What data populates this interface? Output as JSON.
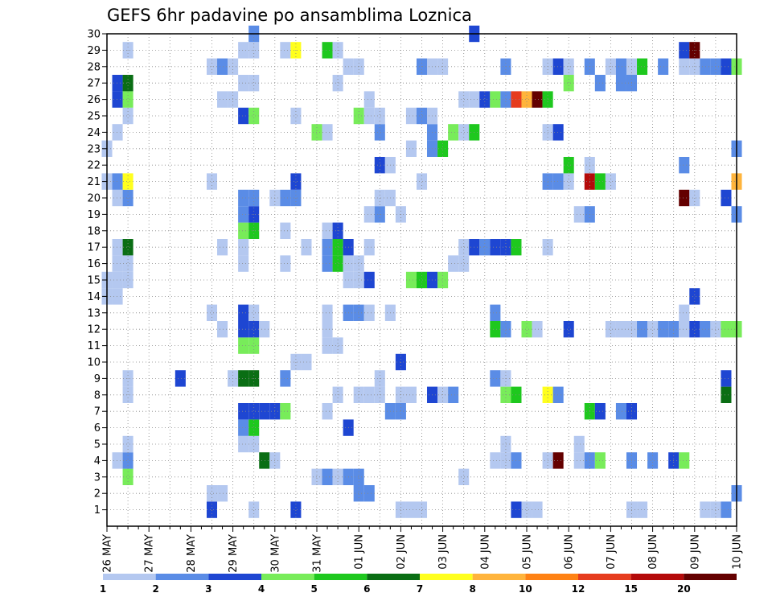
{
  "chart_data": {
    "type": "heatmap",
    "title": "GEFS 6hr padavine po ansamblima Loznica",
    "y_categories": [
      "1",
      "2",
      "3",
      "4",
      "5",
      "6",
      "7",
      "8",
      "9",
      "10",
      "11",
      "12",
      "13",
      "14",
      "15",
      "16",
      "17",
      "18",
      "19",
      "20",
      "21",
      "22",
      "23",
      "24",
      "25",
      "26",
      "27",
      "28",
      "29",
      "30"
    ],
    "x_tick_labels": [
      "26 MAY",
      "27 MAY",
      "28 MAY",
      "29 MAY",
      "30 MAY",
      "31 MAY",
      "01 JUN",
      "02 JUN",
      "03 JUN",
      "04 JUN",
      "05 JUN",
      "06 JUN",
      "07 JUN",
      "08 JUN",
      "09 JUN",
      "10 JUN"
    ],
    "x_step_hours": 6,
    "n_time_steps": 61,
    "colorbar": {
      "tick_labels": [
        "1",
        "2",
        "3",
        "4",
        "5",
        "6",
        "7",
        "8",
        "10",
        "12",
        "15",
        "20"
      ],
      "colors": [
        "#b4c8f0",
        "#5a8ce6",
        "#1e46d2",
        "#78ec5a",
        "#1ec81e",
        "#0a6e14",
        "#ffff1e",
        "#ffb43c",
        "#ff8214",
        "#e63c1e",
        "#b40a0a",
        "#640000"
      ]
    },
    "grid": true,
    "cells": [
      [
        1,
        10,
        3
      ],
      [
        1,
        14,
        1
      ],
      [
        1,
        18,
        3
      ],
      [
        1,
        28,
        1
      ],
      [
        1,
        29,
        1
      ],
      [
        1,
        30,
        1
      ],
      [
        1,
        39,
        3
      ],
      [
        1,
        40,
        1
      ],
      [
        1,
        41,
        1
      ],
      [
        1,
        50,
        1
      ],
      [
        1,
        51,
        1
      ],
      [
        1,
        57,
        1
      ],
      [
        1,
        58,
        1
      ],
      [
        1,
        59,
        2
      ],
      [
        2,
        10,
        1
      ],
      [
        2,
        11,
        1
      ],
      [
        2,
        24,
        2
      ],
      [
        2,
        25,
        2
      ],
      [
        2,
        60,
        2
      ],
      [
        3,
        2,
        4
      ],
      [
        3,
        20,
        1
      ],
      [
        3,
        21,
        2
      ],
      [
        3,
        22,
        1
      ],
      [
        3,
        23,
        2
      ],
      [
        3,
        24,
        2
      ],
      [
        3,
        34,
        1
      ],
      [
        4,
        1,
        1
      ],
      [
        4,
        2,
        2
      ],
      [
        4,
        15,
        6
      ],
      [
        4,
        16,
        1
      ],
      [
        4,
        37,
        1
      ],
      [
        4,
        38,
        1
      ],
      [
        4,
        39,
        2
      ],
      [
        4,
        42,
        1
      ],
      [
        4,
        43,
        12
      ],
      [
        4,
        45,
        1
      ],
      [
        4,
        46,
        2
      ],
      [
        4,
        47,
        4
      ],
      [
        4,
        50,
        2
      ],
      [
        4,
        52,
        2
      ],
      [
        4,
        54,
        3
      ],
      [
        4,
        55,
        4
      ],
      [
        5,
        2,
        1
      ],
      [
        5,
        13,
        1
      ],
      [
        5,
        14,
        1
      ],
      [
        5,
        38,
        1
      ],
      [
        5,
        45,
        1
      ],
      [
        6,
        13,
        2
      ],
      [
        6,
        14,
        5
      ],
      [
        6,
        23,
        3
      ],
      [
        7,
        13,
        3
      ],
      [
        7,
        14,
        3
      ],
      [
        7,
        15,
        3
      ],
      [
        7,
        16,
        3
      ],
      [
        7,
        17,
        4
      ],
      [
        7,
        21,
        1
      ],
      [
        7,
        27,
        2
      ],
      [
        7,
        28,
        2
      ],
      [
        7,
        46,
        5
      ],
      [
        7,
        47,
        3
      ],
      [
        7,
        49,
        2
      ],
      [
        7,
        50,
        3
      ],
      [
        8,
        2,
        1
      ],
      [
        8,
        22,
        1
      ],
      [
        8,
        24,
        1
      ],
      [
        8,
        25,
        1
      ],
      [
        8,
        26,
        1
      ],
      [
        8,
        28,
        1
      ],
      [
        8,
        29,
        1
      ],
      [
        8,
        31,
        3
      ],
      [
        8,
        32,
        1
      ],
      [
        8,
        33,
        2
      ],
      [
        8,
        38,
        4
      ],
      [
        8,
        39,
        5
      ],
      [
        8,
        42,
        7
      ],
      [
        8,
        43,
        2
      ],
      [
        8,
        59,
        6
      ],
      [
        9,
        2,
        1
      ],
      [
        9,
        7,
        3
      ],
      [
        9,
        12,
        1
      ],
      [
        9,
        13,
        6
      ],
      [
        9,
        14,
        6
      ],
      [
        9,
        17,
        2
      ],
      [
        9,
        26,
        1
      ],
      [
        9,
        37,
        2
      ],
      [
        9,
        38,
        1
      ],
      [
        9,
        59,
        3
      ],
      [
        10,
        18,
        1
      ],
      [
        10,
        19,
        1
      ],
      [
        10,
        28,
        3
      ],
      [
        11,
        13,
        4
      ],
      [
        11,
        14,
        4
      ],
      [
        11,
        21,
        1
      ],
      [
        11,
        22,
        1
      ],
      [
        12,
        11,
        1
      ],
      [
        12,
        13,
        3
      ],
      [
        12,
        14,
        3
      ],
      [
        12,
        15,
        1
      ],
      [
        12,
        21,
        1
      ],
      [
        12,
        37,
        5
      ],
      [
        12,
        38,
        2
      ],
      [
        12,
        40,
        4
      ],
      [
        12,
        41,
        1
      ],
      [
        12,
        44,
        3
      ],
      [
        12,
        48,
        1
      ],
      [
        12,
        49,
        1
      ],
      [
        12,
        50,
        1
      ],
      [
        12,
        51,
        2
      ],
      [
        12,
        52,
        1
      ],
      [
        12,
        53,
        2
      ],
      [
        12,
        54,
        2
      ],
      [
        12,
        55,
        1
      ],
      [
        12,
        56,
        3
      ],
      [
        12,
        57,
        2
      ],
      [
        12,
        58,
        1
      ],
      [
        12,
        59,
        4
      ],
      [
        12,
        60,
        4
      ],
      [
        13,
        10,
        1
      ],
      [
        13,
        13,
        3
      ],
      [
        13,
        14,
        1
      ],
      [
        13,
        21,
        1
      ],
      [
        13,
        23,
        2
      ],
      [
        13,
        24,
        2
      ],
      [
        13,
        25,
        1
      ],
      [
        13,
        27,
        1
      ],
      [
        13,
        37,
        2
      ],
      [
        13,
        55,
        1
      ],
      [
        14,
        0,
        1
      ],
      [
        14,
        1,
        1
      ],
      [
        14,
        56,
        3
      ],
      [
        15,
        0,
        1
      ],
      [
        15,
        1,
        1
      ],
      [
        15,
        2,
        1
      ],
      [
        15,
        23,
        1
      ],
      [
        15,
        24,
        1
      ],
      [
        15,
        25,
        3
      ],
      [
        15,
        29,
        4
      ],
      [
        15,
        30,
        5
      ],
      [
        15,
        31,
        3
      ],
      [
        15,
        32,
        4
      ],
      [
        16,
        1,
        1
      ],
      [
        16,
        2,
        1
      ],
      [
        16,
        13,
        1
      ],
      [
        16,
        17,
        1
      ],
      [
        16,
        21,
        2
      ],
      [
        16,
        22,
        5
      ],
      [
        16,
        23,
        1
      ],
      [
        16,
        24,
        1
      ],
      [
        16,
        33,
        1
      ],
      [
        16,
        34,
        1
      ],
      [
        17,
        1,
        1
      ],
      [
        17,
        2,
        6
      ],
      [
        17,
        11,
        1
      ],
      [
        17,
        13,
        1
      ],
      [
        17,
        19,
        1
      ],
      [
        17,
        21,
        2
      ],
      [
        17,
        22,
        5
      ],
      [
        17,
        23,
        3
      ],
      [
        17,
        25,
        1
      ],
      [
        17,
        34,
        1
      ],
      [
        17,
        35,
        3
      ],
      [
        17,
        36,
        2
      ],
      [
        17,
        37,
        3
      ],
      [
        17,
        38,
        3
      ],
      [
        17,
        39,
        5
      ],
      [
        17,
        42,
        1
      ],
      [
        18,
        13,
        4
      ],
      [
        18,
        14,
        5
      ],
      [
        18,
        17,
        1
      ],
      [
        18,
        21,
        1
      ],
      [
        18,
        22,
        3
      ],
      [
        19,
        13,
        2
      ],
      [
        19,
        14,
        3
      ],
      [
        19,
        25,
        1
      ],
      [
        19,
        26,
        2
      ],
      [
        19,
        28,
        1
      ],
      [
        19,
        45,
        1
      ],
      [
        19,
        46,
        2
      ],
      [
        19,
        60,
        2
      ],
      [
        20,
        1,
        1
      ],
      [
        20,
        2,
        2
      ],
      [
        20,
        13,
        2
      ],
      [
        20,
        14,
        2
      ],
      [
        20,
        16,
        1
      ],
      [
        20,
        17,
        2
      ],
      [
        20,
        18,
        2
      ],
      [
        20,
        26,
        1
      ],
      [
        20,
        27,
        1
      ],
      [
        20,
        55,
        12
      ],
      [
        20,
        56,
        1
      ],
      [
        20,
        59,
        3
      ],
      [
        21,
        0,
        1
      ],
      [
        21,
        1,
        2
      ],
      [
        21,
        2,
        7
      ],
      [
        21,
        10,
        1
      ],
      [
        21,
        18,
        3
      ],
      [
        21,
        30,
        1
      ],
      [
        21,
        42,
        2
      ],
      [
        21,
        43,
        2
      ],
      [
        21,
        44,
        1
      ],
      [
        21,
        46,
        11
      ],
      [
        21,
        47,
        5
      ],
      [
        21,
        48,
        1
      ],
      [
        21,
        60,
        8
      ],
      [
        22,
        26,
        3
      ],
      [
        22,
        27,
        1
      ],
      [
        22,
        44,
        5
      ],
      [
        22,
        46,
        1
      ],
      [
        22,
        55,
        2
      ],
      [
        23,
        0,
        1
      ],
      [
        23,
        29,
        1
      ],
      [
        23,
        31,
        2
      ],
      [
        23,
        32,
        5
      ],
      [
        23,
        60,
        2
      ],
      [
        24,
        1,
        1
      ],
      [
        24,
        20,
        4
      ],
      [
        24,
        21,
        1
      ],
      [
        24,
        26,
        2
      ],
      [
        24,
        31,
        2
      ],
      [
        24,
        33,
        4
      ],
      [
        24,
        34,
        1
      ],
      [
        24,
        35,
        5
      ],
      [
        24,
        42,
        1
      ],
      [
        24,
        43,
        3
      ],
      [
        25,
        2,
        1
      ],
      [
        25,
        13,
        3
      ],
      [
        25,
        14,
        4
      ],
      [
        25,
        18,
        1
      ],
      [
        25,
        24,
        4
      ],
      [
        25,
        25,
        1
      ],
      [
        25,
        26,
        1
      ],
      [
        25,
        29,
        1
      ],
      [
        25,
        30,
        2
      ],
      [
        25,
        31,
        1
      ],
      [
        26,
        1,
        3
      ],
      [
        26,
        2,
        4
      ],
      [
        26,
        11,
        1
      ],
      [
        26,
        12,
        1
      ],
      [
        26,
        25,
        1
      ],
      [
        26,
        34,
        1
      ],
      [
        26,
        35,
        1
      ],
      [
        26,
        36,
        3
      ],
      [
        26,
        37,
        4
      ],
      [
        26,
        38,
        2
      ],
      [
        26,
        39,
        10
      ],
      [
        26,
        40,
        8
      ],
      [
        26,
        41,
        12
      ],
      [
        26,
        42,
        5
      ],
      [
        27,
        1,
        3
      ],
      [
        27,
        2,
        6
      ],
      [
        27,
        13,
        1
      ],
      [
        27,
        14,
        1
      ],
      [
        27,
        22,
        1
      ],
      [
        27,
        44,
        4
      ],
      [
        27,
        47,
        2
      ],
      [
        27,
        49,
        2
      ],
      [
        27,
        50,
        2
      ],
      [
        28,
        10,
        1
      ],
      [
        28,
        11,
        2
      ],
      [
        28,
        12,
        1
      ],
      [
        28,
        23,
        1
      ],
      [
        28,
        24,
        1
      ],
      [
        28,
        30,
        2
      ],
      [
        28,
        31,
        1
      ],
      [
        28,
        32,
        1
      ],
      [
        28,
        38,
        2
      ],
      [
        28,
        42,
        1
      ],
      [
        28,
        43,
        3
      ],
      [
        28,
        44,
        1
      ],
      [
        28,
        46,
        2
      ],
      [
        28,
        48,
        1
      ],
      [
        28,
        49,
        2
      ],
      [
        28,
        50,
        1
      ],
      [
        28,
        51,
        5
      ],
      [
        28,
        53,
        2
      ],
      [
        28,
        55,
        1
      ],
      [
        28,
        56,
        1
      ],
      [
        28,
        57,
        2
      ],
      [
        28,
        58,
        2
      ],
      [
        28,
        59,
        3
      ],
      [
        28,
        60,
        4
      ],
      [
        29,
        2,
        1
      ],
      [
        29,
        13,
        1
      ],
      [
        29,
        14,
        1
      ],
      [
        29,
        17,
        1
      ],
      [
        29,
        18,
        7
      ],
      [
        29,
        21,
        5
      ],
      [
        29,
        22,
        1
      ],
      [
        29,
        55,
        3
      ],
      [
        29,
        56,
        12
      ],
      [
        30,
        14,
        2
      ],
      [
        30,
        35,
        3
      ]
    ]
  }
}
